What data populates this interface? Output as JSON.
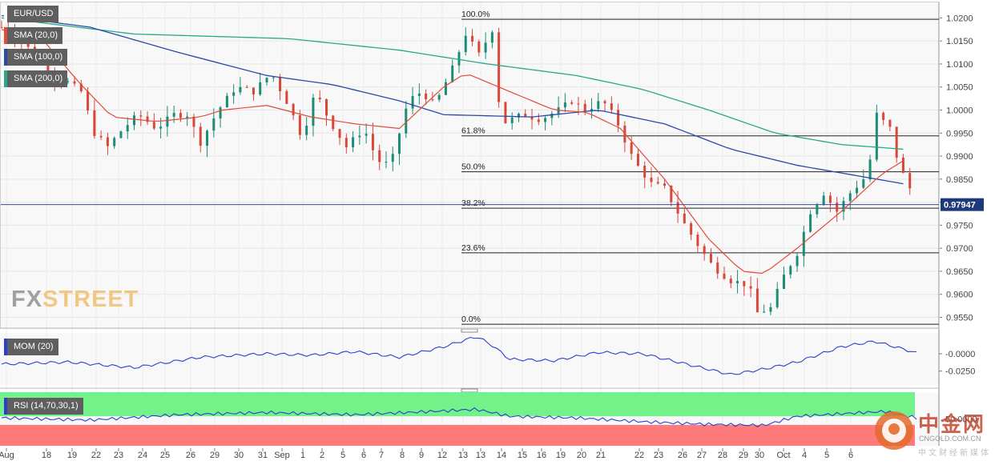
{
  "chart_data": {
    "type": "candlestick",
    "symbol": "EUR/USD",
    "last_price": "0.97947",
    "ylim": [
      0.953,
      1.0225
    ],
    "y_ticks": [
      "1.0200",
      "1.0150",
      "1.0100",
      "1.0050",
      "1.0000",
      "0.9950",
      "0.9900",
      "0.9850",
      "0.9800",
      "0.9750",
      "0.9700",
      "0.9650",
      "0.9600",
      "0.9550"
    ],
    "x_ticks": [
      "Aug",
      "18",
      "19",
      "22",
      "23",
      "24",
      "25",
      "26",
      "29",
      "30",
      "31",
      "Sep",
      "1",
      "2",
      "5",
      "6",
      "7",
      "8",
      "9",
      "12",
      "13",
      "13",
      "14",
      "15",
      "16",
      "19",
      "20",
      "21",
      "22",
      "23",
      "26",
      "27",
      "28",
      "29",
      "30",
      "Oct",
      "4",
      "5",
      "6"
    ],
    "fibonacci": [
      {
        "label": "100.0%",
        "level": 1.0197
      },
      {
        "label": "61.8%",
        "level": 0.9944
      },
      {
        "label": "50.0%",
        "level": 0.9866
      },
      {
        "label": "38.2%",
        "level": 0.9787
      },
      {
        "label": "23.6%",
        "level": 0.969
      },
      {
        "label": "0.0%",
        "level": 0.9535
      }
    ],
    "indicators": [
      "SMA (20,0)",
      "SMA (100,0)",
      "SMA (200,0)"
    ],
    "sma_anchors": {
      "sma20": [
        [
          0,
          1.0175
        ],
        [
          20,
          1.0145
        ],
        [
          35,
          1.006
        ],
        [
          50,
          0.9985
        ],
        [
          70,
          0.9975
        ],
        [
          90,
          0.9985
        ],
        [
          100,
          1.0
        ],
        [
          120,
          1.001
        ],
        [
          140,
          0.9985
        ],
        [
          160,
          0.997
        ],
        [
          180,
          0.996
        ],
        [
          200,
          1.005
        ],
        [
          210,
          1.008
        ],
        [
          230,
          1.004
        ],
        [
          250,
          1.0
        ],
        [
          265,
          0.9995
        ],
        [
          280,
          0.996
        ],
        [
          300,
          0.985
        ],
        [
          320,
          0.972
        ],
        [
          335,
          0.965
        ],
        [
          345,
          0.9645
        ],
        [
          360,
          0.97
        ],
        [
          380,
          0.978
        ],
        [
          398,
          0.986
        ],
        [
          408,
          0.989
        ]
      ],
      "sma100": [
        [
          0,
          1.0205
        ],
        [
          40,
          1.018
        ],
        [
          80,
          1.0125
        ],
        [
          120,
          1.0075
        ],
        [
          150,
          1.0055
        ],
        [
          180,
          1.002
        ],
        [
          200,
          0.999
        ],
        [
          240,
          0.9985
        ],
        [
          270,
          1.0
        ],
        [
          300,
          0.997
        ],
        [
          330,
          0.9915
        ],
        [
          360,
          0.988
        ],
        [
          390,
          0.9855
        ],
        [
          408,
          0.984
        ]
      ],
      "sma200": [
        [
          0,
          1.02
        ],
        [
          60,
          1.0165
        ],
        [
          130,
          1.0155
        ],
        [
          180,
          1.013
        ],
        [
          220,
          1.01
        ],
        [
          260,
          1.0075
        ],
        [
          290,
          1.0045
        ],
        [
          320,
          1.0
        ],
        [
          350,
          0.995
        ],
        [
          380,
          0.9925
        ],
        [
          408,
          0.9915
        ]
      ]
    },
    "price_anchors": [
      [
        0,
        1.018
      ],
      [
        8,
        1.015
      ],
      [
        16,
        1.012
      ],
      [
        24,
        1.007
      ],
      [
        30,
        1.006
      ],
      [
        36,
        1.004
      ],
      [
        42,
        0.995
      ],
      [
        48,
        0.992
      ],
      [
        55,
        0.996
      ],
      [
        62,
        0.999
      ],
      [
        70,
        0.996
      ],
      [
        78,
        0.999
      ],
      [
        84,
        0.999
      ],
      [
        90,
        0.993
      ],
      [
        98,
        1.0
      ],
      [
        106,
        1.005
      ],
      [
        114,
        1.004
      ],
      [
        122,
        1.008
      ],
      [
        130,
        1.001
      ],
      [
        136,
        0.994
      ],
      [
        142,
        1.004
      ],
      [
        148,
        0.998
      ],
      [
        156,
        0.992
      ],
      [
        164,
        0.996
      ],
      [
        170,
        0.989
      ],
      [
        176,
        0.988
      ],
      [
        184,
        1.002
      ],
      [
        190,
        1.004
      ],
      [
        196,
        1.001
      ],
      [
        204,
        1.009
      ],
      [
        210,
        1.0165
      ],
      [
        216,
        1.012
      ],
      [
        222,
        1.0175
      ],
      [
        226,
        0.997
      ],
      [
        236,
        0.999
      ],
      [
        244,
        0.998
      ],
      [
        252,
        1.0
      ],
      [
        258,
        1.002
      ],
      [
        264,
        1.0
      ],
      [
        272,
        1.002
      ],
      [
        278,
        0.998
      ],
      [
        286,
        0.989
      ],
      [
        294,
        0.984
      ],
      [
        300,
        0.983
      ],
      [
        308,
        0.976
      ],
      [
        316,
        0.97
      ],
      [
        322,
        0.966
      ],
      [
        330,
        0.963
      ],
      [
        338,
        0.962
      ],
      [
        342,
        0.956
      ],
      [
        348,
        0.957
      ],
      [
        354,
        0.964
      ],
      [
        360,
        0.969
      ],
      [
        366,
        0.978
      ],
      [
        372,
        0.982
      ],
      [
        378,
        0.978
      ],
      [
        384,
        0.982
      ],
      [
        392,
        0.986
      ],
      [
        396,
        0.999
      ],
      [
        402,
        0.996
      ],
      [
        406,
        0.988
      ],
      [
        410,
        0.984
      ],
      [
        414,
        0.98
      ]
    ],
    "momentum": {
      "label": "MOM (20)",
      "ylim": [
        -0.045,
        0.03
      ],
      "y_ticks": [
        "-0.0000",
        "-0.0250"
      ],
      "values": [
        [
          0,
          -0.015
        ],
        [
          30,
          -0.012
        ],
        [
          60,
          -0.02
        ],
        [
          90,
          -0.005
        ],
        [
          120,
          0.0
        ],
        [
          140,
          -0.002
        ],
        [
          160,
          0.003
        ],
        [
          180,
          -0.005
        ],
        [
          200,
          0.01
        ],
        [
          215,
          0.025
        ],
        [
          222,
          0.012
        ],
        [
          230,
          -0.008
        ],
        [
          250,
          -0.01
        ],
        [
          270,
          0.002
        ],
        [
          290,
          0.0
        ],
        [
          310,
          -0.015
        ],
        [
          330,
          -0.03
        ],
        [
          345,
          -0.022
        ],
        [
          360,
          -0.012
        ],
        [
          380,
          0.01
        ],
        [
          395,
          0.018
        ],
        [
          410,
          0.005
        ],
        [
          414,
          0.001
        ]
      ]
    },
    "rsi": {
      "label": "RSI (14,70,30,1)",
      "y_tick": "50.0000",
      "overbought": 70,
      "oversold": 30,
      "values": [
        [
          0,
          52
        ],
        [
          40,
          48
        ],
        [
          80,
          58
        ],
        [
          120,
          62
        ],
        [
          160,
          58
        ],
        [
          200,
          65
        ],
        [
          215,
          68
        ],
        [
          230,
          55
        ],
        [
          260,
          52
        ],
        [
          290,
          45
        ],
        [
          320,
          40
        ],
        [
          345,
          38
        ],
        [
          360,
          55
        ],
        [
          390,
          62
        ],
        [
          400,
          64
        ],
        [
          414,
          52
        ]
      ]
    }
  },
  "brand": {
    "fx": "FX",
    "street": "STREET"
  },
  "logo": {
    "name": "中金网",
    "site": "CNGOLD.COM.CN",
    "tagline": "中文财经新媒体"
  },
  "colors": {
    "bull": "#1b8c75",
    "bear": "#d9463a",
    "sma20": "#e24a3b",
    "sma100": "#2a4aa8",
    "sma200": "#27a88c",
    "mom": "#2a3fcf",
    "rsi": "#2a3fcf",
    "overbought": "#73f28a",
    "oversold": "#ff7a7a"
  }
}
